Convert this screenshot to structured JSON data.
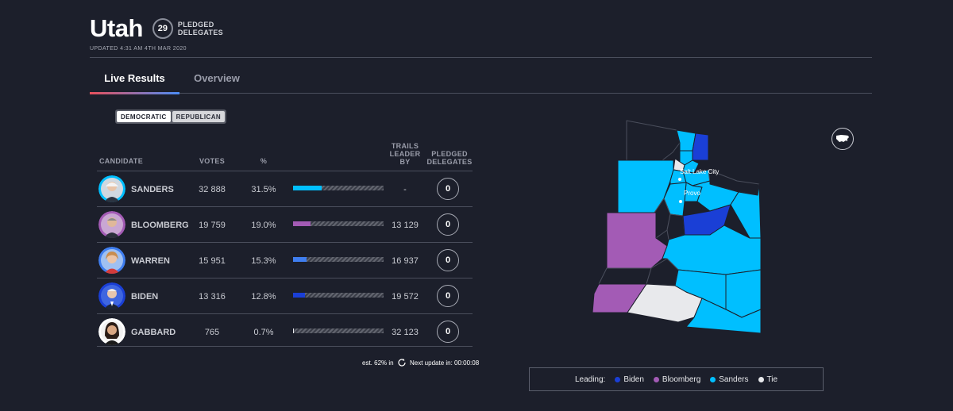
{
  "header": {
    "state": "Utah",
    "delegates": "29",
    "delegates_label_1": "PLEDGED",
    "delegates_label_2": "DELEGATES",
    "updated": "UPDATED 4:31 AM 4TH MAR 2020"
  },
  "tabs": [
    {
      "label": "Live Results",
      "active": true
    },
    {
      "label": "Overview",
      "active": false
    }
  ],
  "party_toggle": {
    "democratic": "DEMOCRATIC",
    "republican": "REPUBLICAN",
    "selected": "DEMOCRATIC"
  },
  "table": {
    "headers": {
      "candidate": "CANDIDATE",
      "votes": "VOTES",
      "pct": "%",
      "trails_1": "TRAILS",
      "trails_2": "LEADER",
      "trails_3": "BY",
      "pd_1": "PLEDGED",
      "pd_2": "DELEGATES"
    },
    "rows": [
      {
        "name": "SANDERS",
        "votes": "32 888",
        "pct": "31.5%",
        "pct_value": 31.5,
        "trails": "-",
        "delegates": "0",
        "color": "#00bfff"
      },
      {
        "name": "BLOOMBERG",
        "votes": "19 759",
        "pct": "19.0%",
        "pct_value": 19.0,
        "trails": "13 129",
        "delegates": "0",
        "color": "#a35bb5"
      },
      {
        "name": "WARREN",
        "votes": "15 951",
        "pct": "15.3%",
        "pct_value": 15.3,
        "trails": "16 937",
        "delegates": "0",
        "color": "#3f7ef0"
      },
      {
        "name": "BIDEN",
        "votes": "13 316",
        "pct": "12.8%",
        "pct_value": 12.8,
        "trails": "19 572",
        "delegates": "0",
        "color": "#1a3fd6"
      },
      {
        "name": "GABBARD",
        "votes": "765",
        "pct": "0.7%",
        "pct_value": 0.7,
        "trails": "32 123",
        "delegates": "0",
        "color": "#e8e9ec"
      }
    ]
  },
  "footer": {
    "est": "est. 62% in",
    "next_update": "Next update in: 00:00:08"
  },
  "map": {
    "cities": [
      "Salt Lake City",
      "Provo"
    ]
  },
  "legend": {
    "label": "Leading:",
    "items": [
      {
        "name": "Biden",
        "color": "#1a3fd6"
      },
      {
        "name": "Bloomberg",
        "color": "#a35bb5"
      },
      {
        "name": "Sanders",
        "color": "#00bfff"
      },
      {
        "name": "Tie",
        "color": "#e8e9ec"
      }
    ]
  },
  "colors": {
    "background": "#1c1f2b",
    "sanders": "#00bfff",
    "bloomberg": "#a35bb5",
    "biden": "#1a3fd6",
    "warren": "#3f7ef0",
    "tie": "#e8e9ec",
    "no_data": "#1c1f2b"
  }
}
